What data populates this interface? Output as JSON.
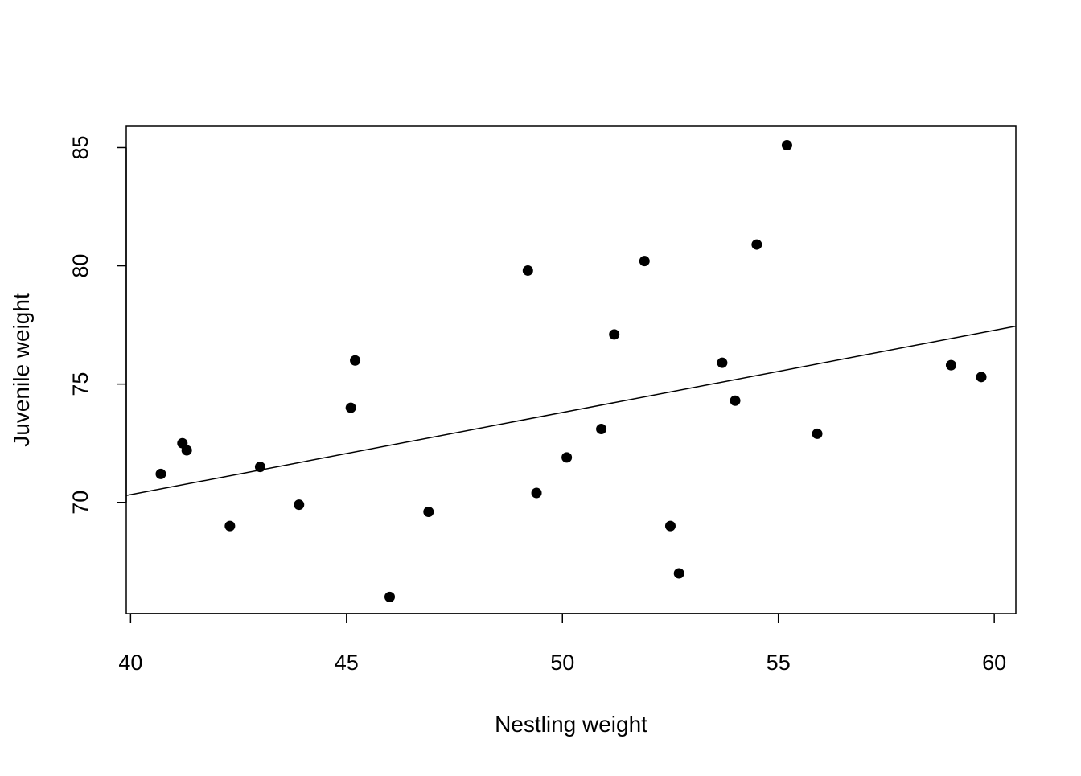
{
  "chart_data": {
    "type": "scatter",
    "title": "",
    "xlabel": "Nestling weight",
    "ylabel": "Juvenile weight",
    "xlim": [
      39.9,
      60.5
    ],
    "ylim": [
      65.3,
      85.9
    ],
    "xticks": [
      40,
      45,
      50,
      55,
      60
    ],
    "yticks": [
      70,
      75,
      80,
      85
    ],
    "grid": false,
    "legend": "none",
    "colors": {
      "points": "#000000",
      "line": "#000000",
      "frame": "#000000"
    },
    "points": [
      {
        "x": 40.7,
        "y": 71.2
      },
      {
        "x": 41.2,
        "y": 72.5
      },
      {
        "x": 41.3,
        "y": 72.2
      },
      {
        "x": 42.3,
        "y": 69.0
      },
      {
        "x": 43.0,
        "y": 71.5
      },
      {
        "x": 43.9,
        "y": 69.9
      },
      {
        "x": 45.1,
        "y": 74.0
      },
      {
        "x": 45.2,
        "y": 76.0
      },
      {
        "x": 46.0,
        "y": 66.0
      },
      {
        "x": 46.9,
        "y": 69.6
      },
      {
        "x": 49.2,
        "y": 79.8
      },
      {
        "x": 49.4,
        "y": 70.4
      },
      {
        "x": 50.1,
        "y": 71.9
      },
      {
        "x": 50.9,
        "y": 73.1
      },
      {
        "x": 51.2,
        "y": 77.1
      },
      {
        "x": 51.9,
        "y": 80.2
      },
      {
        "x": 52.5,
        "y": 69.0
      },
      {
        "x": 52.7,
        "y": 67.0
      },
      {
        "x": 53.7,
        "y": 75.9
      },
      {
        "x": 54.0,
        "y": 74.3
      },
      {
        "x": 54.5,
        "y": 80.9
      },
      {
        "x": 55.2,
        "y": 85.1
      },
      {
        "x": 55.9,
        "y": 72.9
      },
      {
        "x": 59.0,
        "y": 75.8
      },
      {
        "x": 59.7,
        "y": 75.3
      }
    ],
    "regression_line": {
      "intercept": 56.43,
      "slope": 0.3474
    }
  }
}
